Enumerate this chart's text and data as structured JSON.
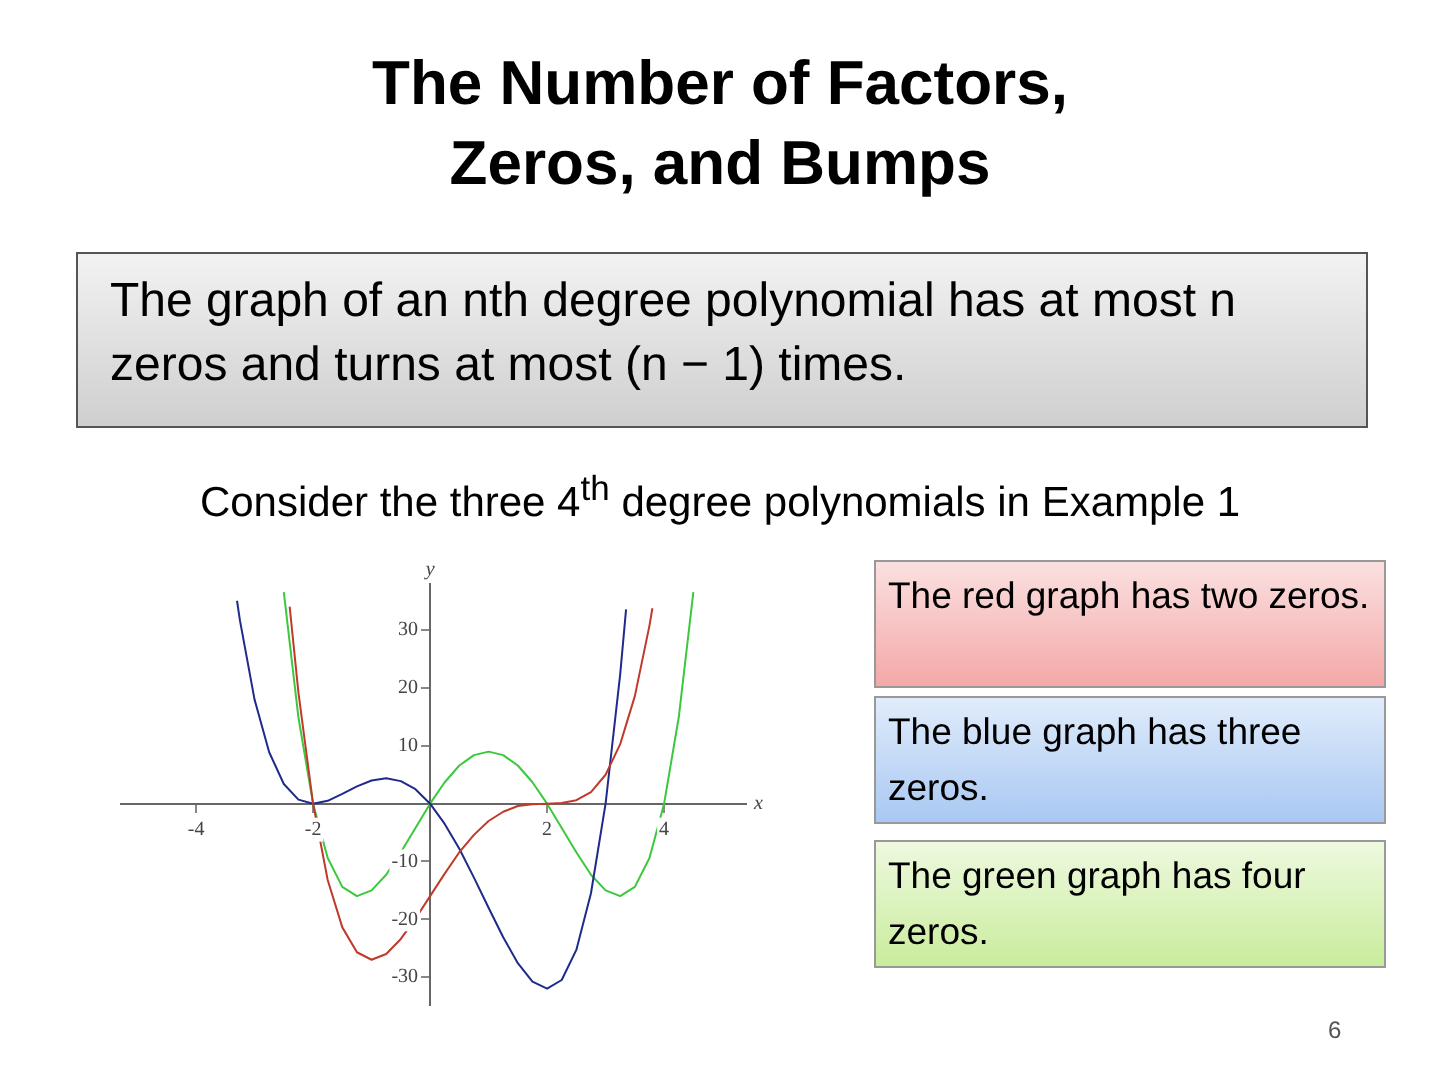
{
  "chart_data": {
    "type": "line",
    "title": "The Number of Factors, Zeros, and Bumps",
    "xlabel": "x",
    "ylabel": "y",
    "annotations": [
      "The graph of an nth degree polynomial has at most n zeros and turns at most (n − 1) times.",
      "Consider the three 4$^{th}$ degree polynomials in Example 1",
      "The red graph  has two zeros.",
      "The blue graph  has three zeros.",
      "The green graph has four zeros.",
      "6"
    ],
    "xlim": [
      -5.3,
      5.4
    ],
    "ylim": [
      -35,
      38
    ],
    "xticks": [
      -4,
      -2,
      2,
      4
    ],
    "yticks": [
      -30,
      -20,
      -10,
      10,
      20,
      30
    ],
    "grid": false,
    "legend": false,
    "marker": "none",
    "line_style": "solid",
    "series": [
      {
        "color": "#c0392b",
        "x": [
          -2.4,
          -2.25,
          -2,
          -1.75,
          -1.5,
          -1.25,
          -1,
          -0.75,
          -0.5,
          -0.25,
          0,
          0.25,
          0.5,
          0.75,
          1,
          1.25,
          1.5,
          1.75,
          2,
          2.25,
          2.5,
          2.75,
          3,
          3.25,
          3.5,
          3.75,
          3.8
        ],
        "values": [
          34.1,
          19.2,
          0,
          -13.2,
          -21.4,
          -25.7,
          -27,
          -26,
          -23.4,
          -19.9,
          -16,
          -12.1,
          -8.4,
          -5.4,
          -3,
          -1.4,
          -0.4,
          -0.1,
          0,
          0.1,
          0.6,
          2,
          5,
          10.3,
          18.6,
          30.8,
          33.8
        ]
      },
      {
        "color": "#1f2a8a",
        "x": [
          -3.3,
          -3.25,
          -3,
          -2.75,
          -2.5,
          -2.25,
          -2,
          -1.75,
          -1.5,
          -1.25,
          -1,
          -0.75,
          -0.5,
          -0.25,
          0,
          0.25,
          0.5,
          0.75,
          1,
          1.25,
          1.5,
          1.75,
          2,
          2.25,
          2.5,
          2.75,
          3,
          3.25,
          3.35
        ],
        "values": [
          35.1,
          31.7,
          18,
          8.9,
          3.4,
          0.7,
          0,
          0.5,
          1.7,
          3,
          4,
          4.4,
          3.9,
          2.5,
          0,
          -3.5,
          -7.8,
          -12.8,
          -18,
          -23.1,
          -27.6,
          -30.8,
          -32,
          -30.5,
          -25.3,
          -15.5,
          0,
          22.4,
          33.6
        ]
      },
      {
        "color": "#3cc83c",
        "x": [
          -2.5,
          -2.25,
          -2,
          -1.75,
          -1.5,
          -1.25,
          -1,
          -0.75,
          -0.5,
          -0.25,
          0,
          0.25,
          0.5,
          0.75,
          1,
          1.25,
          1.5,
          1.75,
          2,
          2.25,
          2.5,
          2.75,
          3,
          3.25,
          3.5,
          3.75,
          4,
          4.25,
          4.5
        ],
        "values": [
          36.6,
          14.9,
          0,
          -9.4,
          -14.4,
          -16,
          -15,
          -12.3,
          -8.4,
          -4.2,
          0,
          3.7,
          6.6,
          8.4,
          9,
          8.4,
          6.6,
          3.7,
          0,
          -4.2,
          -8.4,
          -12.3,
          -15,
          -16,
          -14.4,
          -9.4,
          0,
          14.9,
          36.6
        ]
      }
    ]
  }
}
